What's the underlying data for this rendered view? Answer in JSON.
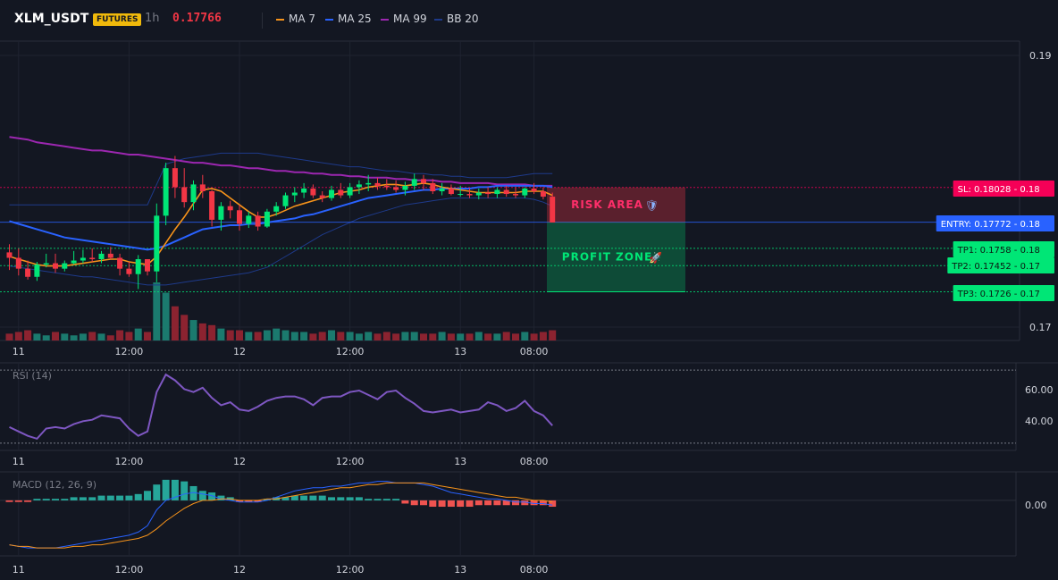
{
  "header": {
    "symbol": "XLM_USDT",
    "badge": "FUTURES",
    "timeframe": "1h",
    "price": "0.17766",
    "legend": [
      {
        "label": "MA 7",
        "color": "#f7931a"
      },
      {
        "label": "MA 25",
        "color": "#2962ff"
      },
      {
        "label": "MA 99",
        "color": "#9c27b0"
      },
      {
        "label": "BB 20",
        "color": "#1e3a8a"
      }
    ]
  },
  "colors": {
    "up": "#00e676",
    "down": "#f23645",
    "vol_up": "#1b7a6e",
    "vol_down": "#8c2330",
    "rsi": "#7e57c2",
    "macd": "#2962ff",
    "signal": "#f7931a",
    "hist_up": "#26a69a",
    "hist_down": "#ef5350"
  },
  "chart_data": {
    "type": "candlestick",
    "y_axis_labels": [
      "0.19",
      "0.17"
    ],
    "ylim": [
      0.17,
      0.19
    ],
    "x_ticks": [
      "11",
      "12:00",
      "12",
      "12:00",
      "13",
      "08:00"
    ],
    "tick_index": [
      1,
      13,
      25,
      37,
      49,
      57
    ],
    "candles": [
      [
        0.1755,
        0.1761,
        0.1742,
        0.1751
      ],
      [
        0.1751,
        0.1758,
        0.1738,
        0.1743
      ],
      [
        0.1743,
        0.1749,
        0.1735,
        0.1737
      ],
      [
        0.1737,
        0.1748,
        0.1734,
        0.1746
      ],
      [
        0.1746,
        0.1754,
        0.1744,
        0.1747
      ],
      [
        0.1747,
        0.1754,
        0.174,
        0.1743
      ],
      [
        0.1743,
        0.1749,
        0.1741,
        0.1747
      ],
      [
        0.1747,
        0.1756,
        0.1746,
        0.1749
      ],
      [
        0.1749,
        0.1757,
        0.1747,
        0.1751
      ],
      [
        0.1751,
        0.1758,
        0.1748,
        0.175
      ],
      [
        0.175,
        0.1756,
        0.1747,
        0.1754
      ],
      [
        0.1754,
        0.1759,
        0.175,
        0.1751
      ],
      [
        0.1751,
        0.1754,
        0.1738,
        0.1743
      ],
      [
        0.1743,
        0.1748,
        0.1737,
        0.1739
      ],
      [
        0.1739,
        0.1753,
        0.1728,
        0.175
      ],
      [
        0.175,
        0.1749,
        0.1738,
        0.1741
      ],
      [
        0.1741,
        0.1791,
        0.1733,
        0.1782
      ],
      [
        0.1782,
        0.1821,
        0.1775,
        0.1817
      ],
      [
        0.1817,
        0.1826,
        0.1795,
        0.1803
      ],
      [
        0.1803,
        0.1817,
        0.1788,
        0.1792
      ],
      [
        0.1792,
        0.1808,
        0.1786,
        0.1805
      ],
      [
        0.1805,
        0.1812,
        0.1795,
        0.18
      ],
      [
        0.18,
        0.1801,
        0.1774,
        0.1779
      ],
      [
        0.1779,
        0.1792,
        0.1771,
        0.1789
      ],
      [
        0.1789,
        0.1793,
        0.178,
        0.1786
      ],
      [
        0.1786,
        0.179,
        0.1771,
        0.1776
      ],
      [
        0.1776,
        0.1785,
        0.1773,
        0.1782
      ],
      [
        0.1782,
        0.1785,
        0.1771,
        0.1774
      ],
      [
        0.1774,
        0.1787,
        0.1773,
        0.1785
      ],
      [
        0.1785,
        0.1792,
        0.1782,
        0.1789
      ],
      [
        0.1789,
        0.1799,
        0.1787,
        0.1797
      ],
      [
        0.1797,
        0.1803,
        0.1792,
        0.1799
      ],
      [
        0.1799,
        0.1806,
        0.1795,
        0.1802
      ],
      [
        0.1802,
        0.1805,
        0.1795,
        0.1797
      ],
      [
        0.1797,
        0.18,
        0.1792,
        0.1795
      ],
      [
        0.1795,
        0.1804,
        0.1793,
        0.1801
      ],
      [
        0.1801,
        0.1806,
        0.1795,
        0.1797
      ],
      [
        0.1797,
        0.1806,
        0.1795,
        0.1803
      ],
      [
        0.1803,
        0.1808,
        0.1798,
        0.1805
      ],
      [
        0.1805,
        0.1812,
        0.18,
        0.1806
      ],
      [
        0.1806,
        0.181,
        0.1801,
        0.1804
      ],
      [
        0.1804,
        0.1809,
        0.1801,
        0.1803
      ],
      [
        0.1803,
        0.1808,
        0.1799,
        0.1801
      ],
      [
        0.1801,
        0.1807,
        0.1797,
        0.1804
      ],
      [
        0.1804,
        0.1813,
        0.1801,
        0.1809
      ],
      [
        0.1809,
        0.1812,
        0.1801,
        0.1806
      ],
      [
        0.1806,
        0.1809,
        0.1798,
        0.18
      ],
      [
        0.18,
        0.1806,
        0.1797,
        0.1802
      ],
      [
        0.1802,
        0.1805,
        0.1797,
        0.1798
      ],
      [
        0.1798,
        0.1804,
        0.1796,
        0.1798
      ],
      [
        0.1798,
        0.1802,
        0.1795,
        0.1797
      ],
      [
        0.1797,
        0.1802,
        0.1794,
        0.1799
      ],
      [
        0.1799,
        0.1803,
        0.1795,
        0.1798
      ],
      [
        0.1798,
        0.1803,
        0.1795,
        0.1801
      ],
      [
        0.1801,
        0.1804,
        0.1796,
        0.1798
      ],
      [
        0.1798,
        0.1803,
        0.1795,
        0.1797
      ],
      [
        0.1797,
        0.1803,
        0.1795,
        0.1802
      ],
      [
        0.1802,
        0.1806,
        0.1798,
        0.18
      ],
      [
        0.18,
        0.1803,
        0.1794,
        0.1796
      ],
      [
        0.1796,
        0.1799,
        0.1777,
        0.1777
      ]
    ],
    "volumes": [
      4,
      5,
      6,
      4,
      3,
      5,
      4,
      3,
      4,
      5,
      4,
      3,
      6,
      5,
      7,
      5,
      34,
      28,
      20,
      15,
      12,
      10,
      9,
      7,
      6,
      6,
      5,
      5,
      6,
      7,
      6,
      5,
      5,
      4,
      5,
      6,
      5,
      5,
      4,
      5,
      4,
      5,
      4,
      5,
      5,
      4,
      4,
      5,
      4,
      4,
      4,
      5,
      4,
      4,
      5,
      4,
      5,
      4,
      5,
      6
    ],
    "ma7": [
      0.1752,
      0.175,
      0.1748,
      0.1746,
      0.1745,
      0.1745,
      0.1745,
      0.1746,
      0.1747,
      0.1748,
      0.1749,
      0.175,
      0.175,
      0.1748,
      0.1747,
      0.1746,
      0.1752,
      0.1762,
      0.1772,
      0.1781,
      0.1791,
      0.1801,
      0.1802,
      0.18,
      0.1795,
      0.179,
      0.1785,
      0.1781,
      0.1781,
      0.1783,
      0.1786,
      0.1789,
      0.1791,
      0.1793,
      0.1795,
      0.1797,
      0.1799,
      0.18,
      0.1801,
      0.1803,
      0.1804,
      0.1805,
      0.1805,
      0.1804,
      0.1805,
      0.1806,
      0.1805,
      0.1803,
      0.1802,
      0.1801,
      0.18,
      0.1799,
      0.1799,
      0.1799,
      0.1799,
      0.1799,
      0.18,
      0.18,
      0.18,
      0.1797
    ],
    "ma25": [
      0.1778,
      0.1776,
      0.1774,
      0.1772,
      0.177,
      0.1768,
      0.1766,
      0.1765,
      0.1764,
      0.1763,
      0.1762,
      0.1761,
      0.176,
      0.1759,
      0.1758,
      0.1757,
      0.1758,
      0.176,
      0.1763,
      0.1766,
      0.1769,
      0.1772,
      0.1773,
      0.1774,
      0.1775,
      0.1775,
      0.1776,
      0.1776,
      0.1777,
      0.1778,
      0.1779,
      0.178,
      0.1782,
      0.1783,
      0.1785,
      0.1787,
      0.1789,
      0.1791,
      0.1793,
      0.1795,
      0.1796,
      0.1797,
      0.1798,
      0.1799,
      0.18,
      0.1801,
      0.1801,
      0.1802,
      0.1802,
      0.1802,
      0.1802,
      0.1803,
      0.1803,
      0.1804,
      0.1804,
      0.1804,
      0.1804,
      0.1804,
      0.1804,
      0.1803
    ],
    "ma99": [
      0.184,
      0.1839,
      0.1838,
      0.1836,
      0.1835,
      0.1834,
      0.1833,
      0.1832,
      0.1831,
      0.183,
      0.183,
      0.1829,
      0.1828,
      0.1827,
      0.1827,
      0.1826,
      0.1825,
      0.1824,
      0.1823,
      0.1822,
      0.1821,
      0.1821,
      0.182,
      0.1819,
      0.1819,
      0.1818,
      0.1817,
      0.1817,
      0.1816,
      0.1815,
      0.1815,
      0.1814,
      0.1814,
      0.1813,
      0.1813,
      0.1812,
      0.1812,
      0.1811,
      0.1811,
      0.181,
      0.181,
      0.181,
      0.1809,
      0.1809,
      0.1808,
      0.1808,
      0.1808,
      0.1807,
      0.1807,
      0.1806,
      0.1806,
      0.1806,
      0.1806,
      0.1805,
      0.1805,
      0.1805,
      0.1805,
      0.1804,
      0.1804,
      0.1804
    ],
    "bb_upper": [
      0.179,
      0.179,
      0.179,
      0.179,
      0.179,
      0.179,
      0.179,
      0.179,
      0.179,
      0.179,
      0.179,
      0.179,
      0.179,
      0.179,
      0.179,
      0.179,
      0.1805,
      0.182,
      0.1822,
      0.1824,
      0.1825,
      0.1826,
      0.1827,
      0.1828,
      0.1828,
      0.1828,
      0.1828,
      0.1828,
      0.1827,
      0.1826,
      0.1825,
      0.1824,
      0.1823,
      0.1822,
      0.1821,
      0.182,
      0.1819,
      0.1818,
      0.1818,
      0.1817,
      0.1816,
      0.1815,
      0.1815,
      0.1814,
      0.1813,
      0.1813,
      0.1812,
      0.1812,
      0.1811,
      0.1811,
      0.181,
      0.181,
      0.181,
      0.181,
      0.181,
      0.1811,
      0.1812,
      0.1813,
      0.1813,
      0.1813
    ],
    "bb_lower": [
      0.1745,
      0.1744,
      0.1743,
      0.1742,
      0.1741,
      0.174,
      0.1739,
      0.1738,
      0.1737,
      0.1737,
      0.1736,
      0.1735,
      0.1734,
      0.1733,
      0.1732,
      0.1731,
      0.1731,
      0.1731,
      0.1732,
      0.1733,
      0.1734,
      0.1735,
      0.1736,
      0.1737,
      0.1738,
      0.1739,
      0.174,
      0.1742,
      0.1744,
      0.1748,
      0.1752,
      0.1756,
      0.176,
      0.1764,
      0.1768,
      0.1771,
      0.1774,
      0.1777,
      0.178,
      0.1782,
      0.1784,
      0.1786,
      0.1788,
      0.179,
      0.1791,
      0.1792,
      0.1793,
      0.1794,
      0.1795,
      0.1795,
      0.1795,
      0.1795,
      0.1795,
      0.1795,
      0.1795,
      0.1795,
      0.1795,
      0.1794,
      0.1792,
      0.1789
    ],
    "levels": [
      {
        "label": "SL: 0.18028",
        "axis": "0.18",
        "price": 0.18028,
        "color": "#f50057",
        "text_color": "#ffffff"
      },
      {
        "label": "ENTRY: 0.17772",
        "axis": "0.18",
        "price": 0.17772,
        "color": "#2962ff",
        "text_color": "#ffffff"
      },
      {
        "label": "TP1: 0.1758",
        "axis": "0.18",
        "price": 0.1758,
        "color": "#00e676",
        "text_color": "#0b1a12"
      },
      {
        "label": "TP2: 0.17452",
        "axis": "0.17",
        "price": 0.17452,
        "color": "#00e676",
        "text_color": "#0b1a12"
      },
      {
        "label": "TP3: 0.1726",
        "axis": "0.17",
        "price": 0.1726,
        "color": "#00e676",
        "text_color": "#0b1a12"
      }
    ],
    "zones": {
      "risk": {
        "label": "RISK AREA",
        "icon": "🛡",
        "color": "#f23645"
      },
      "profit": {
        "label": "PROFIT ZONE",
        "icon": "🚀",
        "color": "#00e676"
      }
    },
    "rsi": {
      "title": "RSI (14)",
      "y_axis_labels": [
        "60.00",
        "40.00"
      ],
      "ylim": [
        20,
        80
      ],
      "lines": [
        75,
        25
      ],
      "values": [
        36,
        33,
        30,
        28,
        35,
        36,
        35,
        38,
        40,
        41,
        44,
        43,
        42,
        35,
        30,
        33,
        60,
        72,
        68,
        62,
        60,
        63,
        56,
        51,
        53,
        48,
        47,
        50,
        54,
        56,
        57,
        57,
        55,
        51,
        56,
        57,
        57,
        60,
        61,
        58,
        55,
        60,
        61,
        56,
        52,
        47,
        46,
        47,
        48,
        46,
        47,
        48,
        53,
        51,
        47,
        49,
        54,
        47,
        44,
        37
      ]
    },
    "macd": {
      "title": "MACD (12, 26, 9)",
      "y_axis_labels": [
        "0.00"
      ],
      "ylim": [
        -0.0035,
        0.0018
      ],
      "macd": [
        -0.0028,
        -0.0029,
        -0.003,
        -0.003,
        -0.003,
        -0.003,
        -0.0029,
        -0.0028,
        -0.0027,
        -0.0026,
        -0.0025,
        -0.0024,
        -0.0023,
        -0.0022,
        -0.002,
        -0.0016,
        -0.0006,
        0.0,
        0.0002,
        0.0004,
        0.0005,
        0.0004,
        0.0003,
        0.0001,
        0.0,
        -0.0001,
        -0.0001,
        -0.0001,
        0.0,
        0.0002,
        0.0004,
        0.0006,
        0.0007,
        0.0008,
        0.0008,
        0.0009,
        0.0009,
        0.001,
        0.0011,
        0.0011,
        0.0012,
        0.0012,
        0.0011,
        0.0011,
        0.0011,
        0.001,
        0.0009,
        0.0007,
        0.0005,
        0.0004,
        0.0003,
        0.0002,
        0.0001,
        0.0001,
        0.0,
        -0.0001,
        -0.0001,
        -0.0002,
        -0.0002,
        -0.0003
      ],
      "signal": [
        -0.0028,
        -0.0029,
        -0.0029,
        -0.003,
        -0.003,
        -0.003,
        -0.003,
        -0.0029,
        -0.0029,
        -0.0028,
        -0.0028,
        -0.0027,
        -0.0026,
        -0.0025,
        -0.0024,
        -0.0022,
        -0.0018,
        -0.0013,
        -0.0009,
        -0.0005,
        -0.0002,
        0.0,
        0.0,
        0.0001,
        0.0001,
        0.0,
        0.0,
        0.0,
        0.0001,
        0.0001,
        0.0002,
        0.0003,
        0.0004,
        0.0005,
        0.0006,
        0.0007,
        0.0008,
        0.0008,
        0.0009,
        0.001,
        0.001,
        0.0011,
        0.0011,
        0.0011,
        0.0011,
        0.0011,
        0.001,
        0.0009,
        0.0008,
        0.0007,
        0.0006,
        0.0005,
        0.0004,
        0.0003,
        0.0002,
        0.0002,
        0.0001,
        0.0,
        0.0,
        -0.0001
      ],
      "hist": [
        -0.0001,
        -0.0001,
        -0.0001,
        0.0001,
        0.0001,
        0.0001,
        0.0001,
        0.0002,
        0.0002,
        0.0002,
        0.0003,
        0.0003,
        0.0003,
        0.0003,
        0.0004,
        0.0006,
        0.001,
        0.0013,
        0.0013,
        0.0012,
        0.0009,
        0.0006,
        0.0005,
        0.0003,
        0.0002,
        -0.0001,
        -0.0001,
        -0.0001,
        0.0001,
        0.0002,
        0.0002,
        0.0003,
        0.0003,
        0.0003,
        0.0003,
        0.0002,
        0.0002,
        0.0002,
        0.0002,
        0.0001,
        0.0001,
        0.0001,
        0.0001,
        -0.0002,
        -0.0003,
        -0.0003,
        -0.0004,
        -0.0004,
        -0.0004,
        -0.0004,
        -0.0004,
        -0.0003,
        -0.0003,
        -0.0003,
        -0.0003,
        -0.0003,
        -0.0003,
        -0.0003,
        -0.0003,
        -0.0004
      ]
    }
  }
}
